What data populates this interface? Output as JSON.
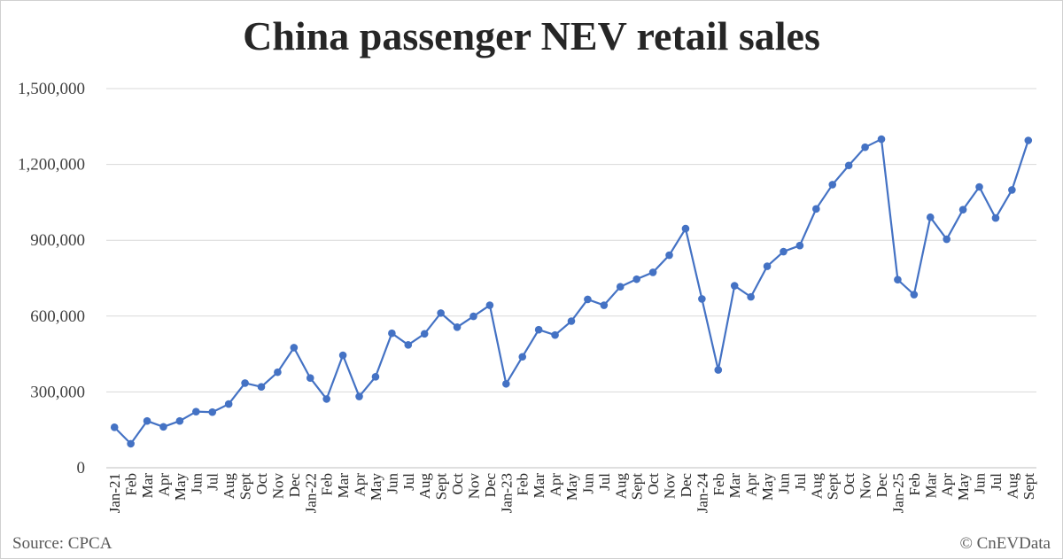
{
  "title": "China passenger NEV retail sales",
  "source": "Source: CPCA",
  "credit": "© CnEVData",
  "chart_data": {
    "type": "line",
    "title": "China passenger NEV retail sales",
    "xlabel": "",
    "ylabel": "",
    "ylim": [
      0,
      1500000
    ],
    "yticks": [
      "0",
      "300,000",
      "600,000",
      "900,000",
      "1,200,000",
      "1,500,000"
    ],
    "grid": true,
    "color": "#4472c4",
    "categories": [
      "Jan-21",
      "Feb",
      "Mar",
      "Apr",
      "May",
      "Jun",
      "Jul",
      "Aug",
      "Sept",
      "Oct",
      "Nov",
      "Dec",
      "Jan-22",
      "Feb",
      "Mar",
      "Apr",
      "May",
      "Jun",
      "Jul",
      "Aug",
      "Sept",
      "Oct",
      "Nov",
      "Dec",
      "Jan-23",
      "Feb",
      "Mar",
      "Apr",
      "May",
      "Jun",
      "Jul",
      "Aug",
      "Sept",
      "Oct",
      "Nov",
      "Dec",
      "Jan-24",
      "Feb",
      "Mar",
      "Apr",
      "May",
      "Jun",
      "Jul",
      "Aug",
      "Sept",
      "Oct",
      "Nov",
      "Dec",
      "Jan-25",
      "Feb",
      "Mar",
      "Apr",
      "May",
      "Jun",
      "Jul",
      "Aug",
      "Sept"
    ],
    "values": [
      160000,
      95000,
      185000,
      162000,
      185000,
      222000,
      220000,
      252000,
      335000,
      320000,
      378000,
      475000,
      355000,
      272000,
      445000,
      282000,
      360000,
      532000,
      486000,
      530000,
      612000,
      556000,
      599000,
      643000,
      332000,
      439000,
      546000,
      525000,
      580000,
      666000,
      643000,
      716000,
      746000,
      773000,
      841000,
      946000,
      668000,
      387000,
      720000,
      676000,
      797000,
      855000,
      879000,
      1024000,
      1120000,
      1196000,
      1268000,
      1300000,
      744000,
      685000,
      991000,
      904000,
      1021000,
      1111000,
      988000,
      1099000,
      1295000
    ]
  }
}
